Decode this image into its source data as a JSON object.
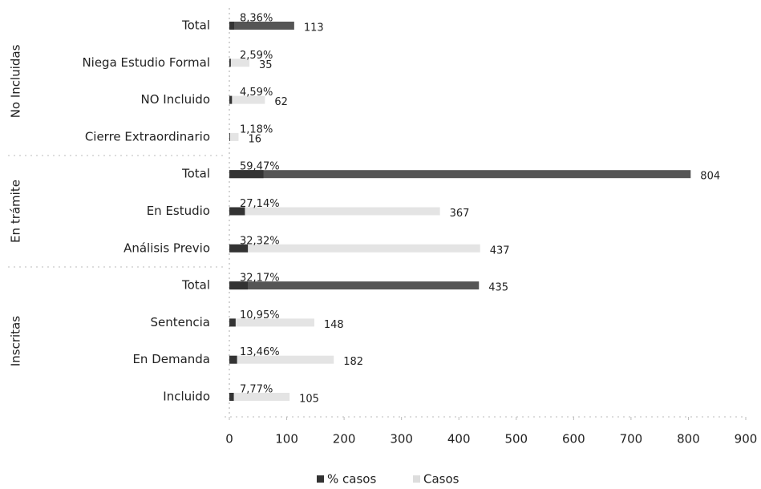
{
  "chart_data": {
    "type": "hbar",
    "category_groups": [
      {
        "name": "No Incluidas",
        "categories": [
          "Total",
          "Niega Estudio Formal",
          "NO Incluido",
          "Cierre Extraordinario"
        ]
      },
      {
        "name": "En trámite",
        "categories": [
          "Total",
          "En Estudio",
          "Análisis Previo"
        ]
      },
      {
        "name": "Inscritas",
        "categories": [
          "Total",
          "Sentencia",
          "En Demanda",
          "Incluido"
        ]
      }
    ],
    "series": [
      {
        "name": "% casos",
        "color": "#333333",
        "values": [
          8.36,
          2.59,
          4.59,
          1.18,
          59.47,
          27.14,
          32.32,
          32.17,
          10.95,
          13.46,
          7.77
        ],
        "value_labels": [
          "8,36%",
          "2,59%",
          "4,59%",
          "1,18%",
          "59,47%",
          "27,14%",
          "32,32%",
          "32,17%",
          "10,95%",
          "13,46%",
          "7,77%"
        ]
      },
      {
        "name": "Casos",
        "color": "#dddddd",
        "colors": [
          "#555555",
          "#e4e4e4",
          "#e4e4e4",
          "#e4e4e4",
          "#555555",
          "#e4e4e4",
          "#e4e4e4",
          "#555555",
          "#e4e4e4",
          "#e4e4e4",
          "#e4e4e4"
        ],
        "values": [
          113,
          35,
          62,
          16,
          804,
          367,
          437,
          435,
          148,
          182,
          105
        ]
      }
    ],
    "xlim": [
      0,
      900
    ],
    "xticks": [
      0,
      100,
      200,
      300,
      400,
      500,
      600,
      700,
      800,
      900
    ],
    "legend": "bottom"
  }
}
